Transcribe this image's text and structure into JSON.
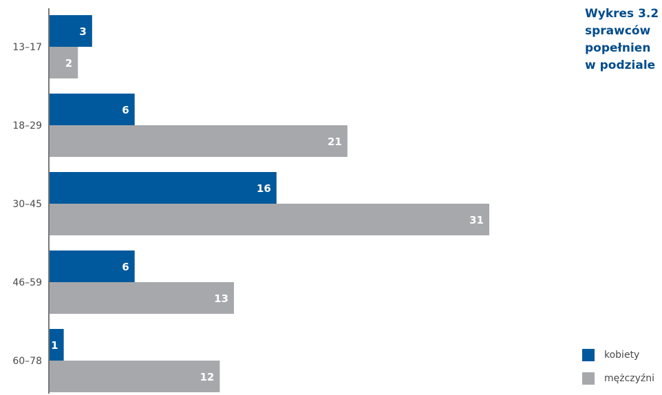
{
  "chart_data": {
    "type": "bar",
    "orientation": "horizontal",
    "title_lines": [
      "Wykres 3.2",
      "sprawców",
      "popełnien",
      "w podziale"
    ],
    "categories": [
      "13–17",
      "18–29",
      "30–45",
      "46–59",
      "60–78"
    ],
    "series": [
      {
        "name": "kobiety",
        "color": "#00599c",
        "values": [
          3,
          6,
          16,
          6,
          1
        ]
      },
      {
        "name": "mężczyźni",
        "color": "#a7a8ac",
        "values": [
          2,
          21,
          31,
          13,
          12
        ]
      }
    ],
    "xlim": [
      0,
      31
    ],
    "grid": false,
    "legend_position": "bottom-right"
  }
}
